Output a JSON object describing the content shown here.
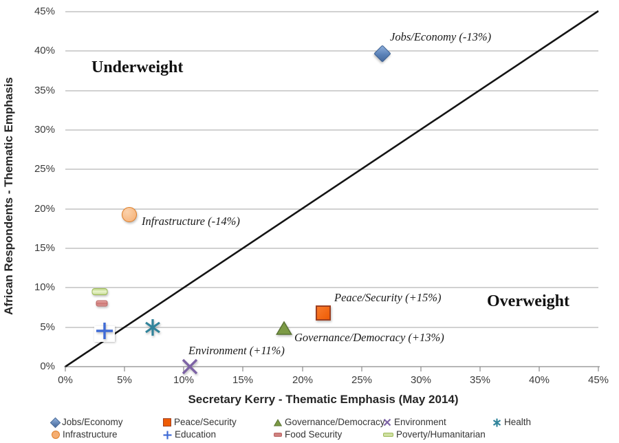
{
  "chart_data": {
    "type": "scatter",
    "xlabel": "Secretary Kerry - Thematic Emphasis (May 2014)",
    "ylabel": "African Respondents - Thematic Emphasis",
    "xlim": [
      0,
      45
    ],
    "ylim": [
      0,
      45
    ],
    "x_tick_labels": [
      "0%",
      "5%",
      "10%",
      "15%",
      "20%",
      "25%",
      "30%",
      "35%",
      "40%",
      "45%"
    ],
    "y_tick_labels": [
      "0%",
      "5%",
      "10%",
      "15%",
      "20%",
      "25%",
      "30%",
      "35%",
      "40%",
      "45%"
    ],
    "grid": "horizontal-only",
    "diagonal_line": {
      "from_xy": [
        0,
        0
      ],
      "to_xy": [
        45,
        45
      ],
      "color": "#111111"
    },
    "regions": {
      "upper_left": "Underweight",
      "lower_right": "Overweight"
    },
    "legend_position": "bottom",
    "series": [
      {
        "name": "Jobs/Economy",
        "x": 26.8,
        "y": 39.7,
        "marker": "diamond",
        "color": "#4F74AE",
        "annotation": "Jobs/Economy (-13%)"
      },
      {
        "name": "Peace/Security",
        "x": 21.8,
        "y": 6.8,
        "marker": "square",
        "color": "#F2600D",
        "annotation": "Peace/Security (+15%)"
      },
      {
        "name": "Governance/Democracy",
        "x": 18.5,
        "y": 4.9,
        "marker": "triangle",
        "color": "#7C9A45",
        "annotation": "Governance/Democracy (+13%)"
      },
      {
        "name": "Environment",
        "x": 10.5,
        "y": 0,
        "marker": "x-cross",
        "color": "#7D63A5",
        "annotation": "Environment (+11%)"
      },
      {
        "name": "Health",
        "x": 7.4,
        "y": 5.0,
        "marker": "asterisk",
        "color": "#31849B"
      },
      {
        "name": "Infrastructure",
        "x": 5.4,
        "y": 19.3,
        "marker": "circle",
        "color": "#FAC090",
        "annotation": "Infrastructure (-14%)"
      },
      {
        "name": "Education",
        "x": 3.3,
        "y": 4.5,
        "marker": "plus",
        "color": "#3F6BD6"
      },
      {
        "name": "Food Security",
        "x": 3.1,
        "y": 8.0,
        "marker": "dash",
        "color": "#D99694"
      },
      {
        "name": "Poverty/Humanitarian",
        "x": 2.9,
        "y": 9.5,
        "marker": "dash",
        "color": "#C3D69B"
      }
    ]
  }
}
